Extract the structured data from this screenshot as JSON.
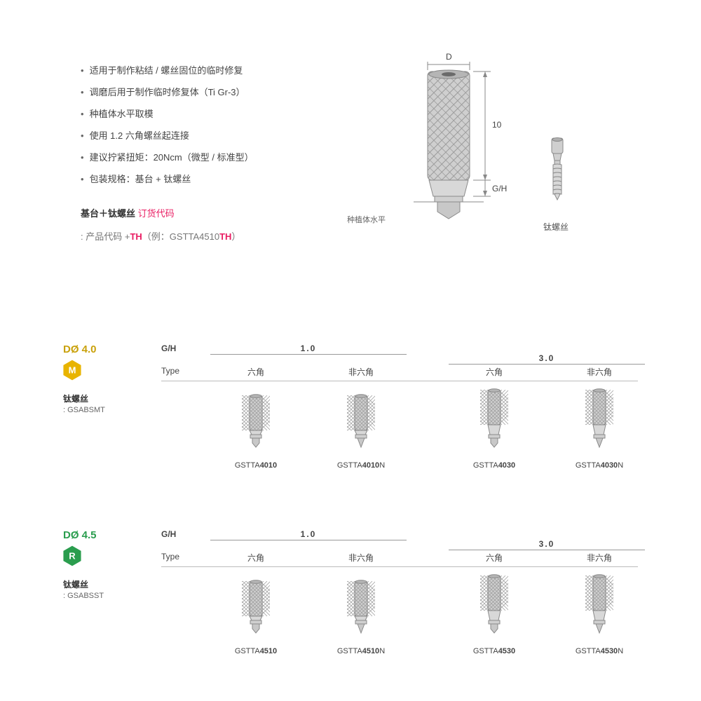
{
  "bullets": [
    "适用于制作粘结 / 螺丝固位的临时修复",
    "调磨后用于制作临时修复体（Ti Gr-3）",
    "种植体水平取模",
    "使用 1.2 六角螺丝起连接",
    "建议拧紧扭矩：20Ncm（微型 / 标准型）",
    "包装规格：基台 + 钛螺丝"
  ],
  "order": {
    "title_black": "基台＋钛螺丝",
    "title_pink": " 订货代码",
    "line2_prefix": ": 产品代码 +",
    "line2_th": "TH",
    "line2_mid": "（例：GSTTA4510",
    "line2_th2": "TH",
    "line2_suffix": "）"
  },
  "diagram": {
    "d_label": "D",
    "height_label": "10",
    "gh_label": "G/H",
    "level_label": "种植体水平",
    "screw_label": "钛螺丝",
    "colors": {
      "metal_light": "#d8d8d8",
      "metal_mid": "#bcbcbc",
      "metal_dark": "#9a9a9a",
      "line": "#888"
    }
  },
  "groups": [
    {
      "size_label": "DØ 4.0",
      "size_color": "#c9a10a",
      "badge_letter": "M",
      "badge_fill": "#e8b400",
      "screw_label": "钛螺丝",
      "screw_code": ": GSABSMT",
      "gh_values": [
        "1.0",
        "3.0"
      ],
      "type_labels": [
        "六角",
        "非六角",
        "六角",
        "非六角"
      ],
      "header_gh": "G/H",
      "header_type": "Type",
      "collar_heights": [
        6,
        6,
        14,
        14
      ],
      "codes": [
        {
          "prefix": "GSTTA",
          "bold": "4010",
          "suffix": ""
        },
        {
          "prefix": "GSTTA",
          "bold": "4010",
          "suffix": "N"
        },
        {
          "prefix": "GSTTA",
          "bold": "4030",
          "suffix": ""
        },
        {
          "prefix": "GSTTA",
          "bold": "4030",
          "suffix": "N"
        }
      ]
    },
    {
      "size_label": "DØ 4.5",
      "size_color": "#2a9d4e",
      "badge_letter": "R",
      "badge_fill": "#2a9d4e",
      "screw_label": "钛螺丝",
      "screw_code": ": GSABSST",
      "gh_values": [
        "1.0",
        "3.0"
      ],
      "type_labels": [
        "六角",
        "非六角",
        "六角",
        "非六角"
      ],
      "header_gh": "G/H",
      "header_type": "Type",
      "collar_heights": [
        6,
        6,
        14,
        14
      ],
      "codes": [
        {
          "prefix": "GSTTA",
          "bold": "4510",
          "suffix": ""
        },
        {
          "prefix": "GSTTA",
          "bold": "4510",
          "suffix": "N"
        },
        {
          "prefix": "GSTTA",
          "bold": "4530",
          "suffix": ""
        },
        {
          "prefix": "GSTTA",
          "bold": "4530",
          "suffix": "N"
        }
      ]
    }
  ]
}
